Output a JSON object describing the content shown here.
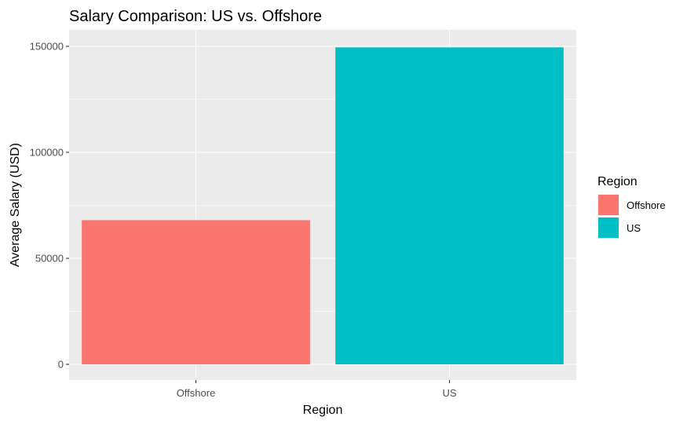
{
  "chart_data": {
    "type": "bar",
    "title": "Salary Comparison: US vs. Offshore",
    "xlabel": "Region",
    "ylabel": "Average Salary (USD)",
    "categories": [
      "Offshore",
      "US"
    ],
    "values": [
      68000,
      149500
    ],
    "colors": [
      "#F8766D",
      "#00BFC4"
    ],
    "ylim": [
      0,
      157000
    ],
    "yticks": [
      0,
      50000,
      100000,
      150000
    ],
    "ytick_labels": [
      "0",
      "50000",
      "100000",
      "150000"
    ],
    "grid": true,
    "panel_background": "#EBEBEB",
    "legend": {
      "title": "Region",
      "position": "right",
      "items": [
        {
          "label": "Offshore",
          "color": "#F8766D"
        },
        {
          "label": "US",
          "color": "#00BFC4"
        }
      ]
    }
  }
}
